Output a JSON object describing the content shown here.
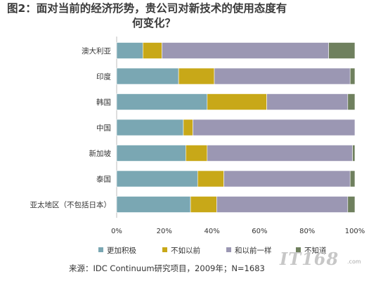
{
  "title": {
    "line1": "图2：面对当前的经济形势，贵公司对新技术的使用态度有",
    "line2": "何变化？"
  },
  "source": "来源：IDC Continuum研究项目，2009年；N=1683",
  "watermark": {
    "text": "IT168",
    "suffix": ".com"
  },
  "colors": {
    "更加积极": "#7aa7b3",
    "不如以前": "#c8a818",
    "和以前一样": "#9b97b3",
    "不知道": "#6f805e"
  },
  "chart_data": {
    "type": "bar",
    "orientation": "horizontal",
    "stacked": true,
    "percent": true,
    "categories": [
      "澳大利亚",
      "印度",
      "韩国",
      "中国",
      "新加坡",
      "泰国",
      "亚太地区（不包括日本）"
    ],
    "series": [
      {
        "name": "更加积极",
        "values": [
          11,
          26,
          38,
          28,
          29,
          34,
          31
        ]
      },
      {
        "name": "不如以前",
        "values": [
          8,
          15,
          25,
          4,
          9,
          11,
          11
        ]
      },
      {
        "name": "和以前一样",
        "values": [
          70,
          57,
          34,
          68,
          61,
          53,
          55
        ]
      },
      {
        "name": "不知道",
        "values": [
          11,
          2,
          3,
          0,
          1,
          2,
          3
        ]
      }
    ],
    "xlim": [
      0,
      100
    ],
    "x_ticks": [
      "0%",
      "20%",
      "40%",
      "60%",
      "80%",
      "100%"
    ],
    "legend": "bottom",
    "grid": false
  }
}
